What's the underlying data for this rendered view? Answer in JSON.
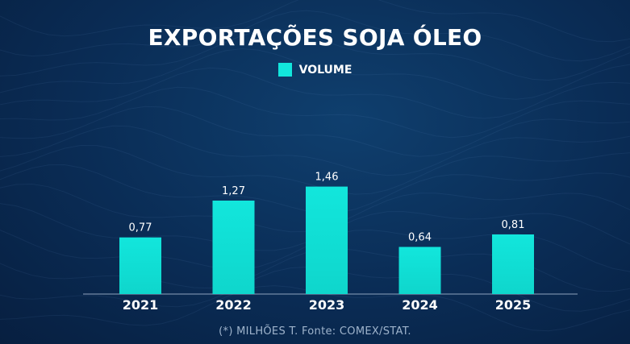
{
  "chart_data": {
    "type": "bar",
    "title": "EXPORTAÇÕES SOJA ÓLEO",
    "categories": [
      "2021",
      "2022",
      "2023",
      "2024",
      "2025"
    ],
    "series": [
      {
        "name": "VOLUME",
        "color": "#12e6dc",
        "values": [
          0.77,
          1.27,
          1.46,
          0.64,
          0.81
        ],
        "labels": [
          "0,77",
          "1,27",
          "1,46",
          "0,64",
          "0,81"
        ]
      }
    ],
    "ylim": [
      0,
      1.62
    ],
    "grid": false,
    "legend_position": "top-center",
    "footnote": "(*) MILHÕES T.  Fonte: COMEX/STAT."
  },
  "colors": {
    "background": "#0a2c55",
    "bar_top": "#12e6dc",
    "bar_bottom": "#0fd6cc",
    "text": "#ffffff",
    "axis": "#8fa3bd"
  }
}
